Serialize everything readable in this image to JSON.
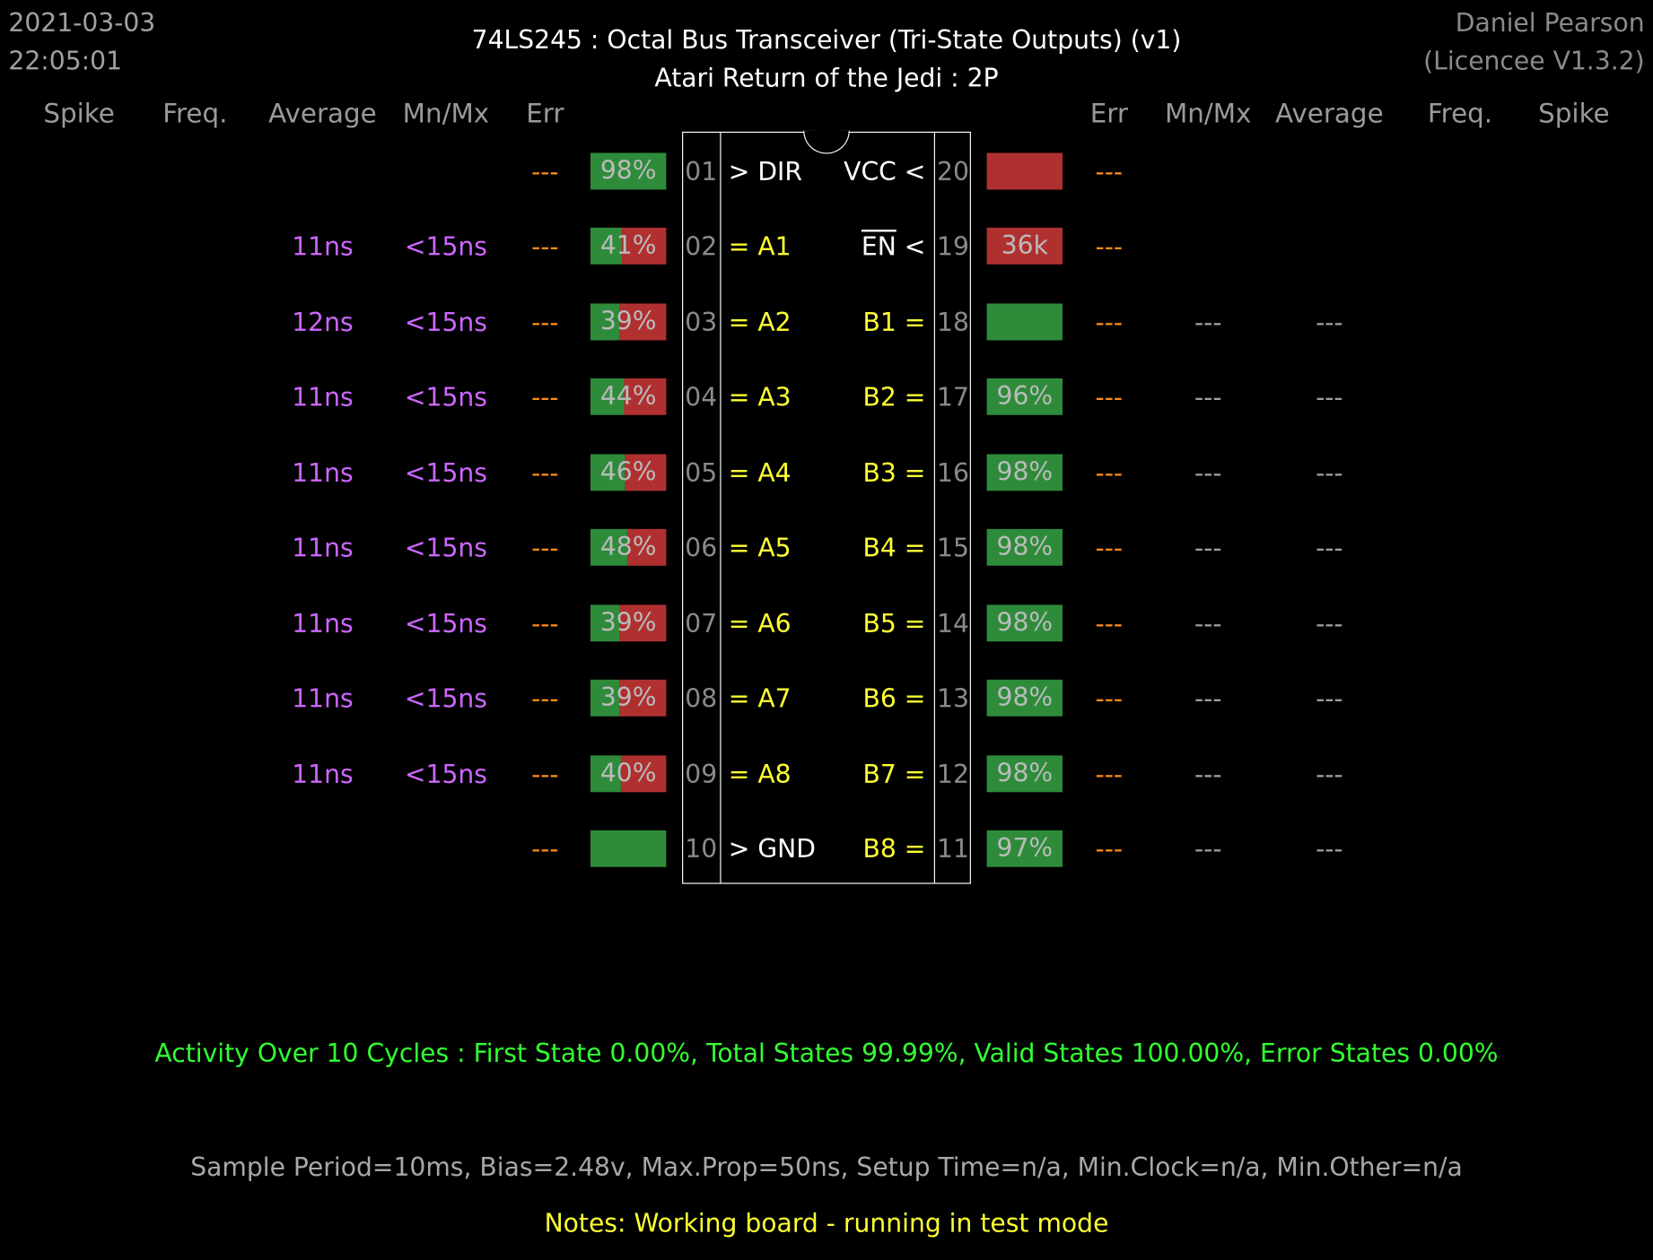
{
  "header": {
    "date": "2021-03-03",
    "time": "22:05:01",
    "title": "74LS245  :  Octal Bus Transceiver (Tri-State Outputs) (v1)",
    "subtitle": "Atari Return of the Jedi : 2P",
    "author": "Daniel Pearson",
    "licence": "(Licencee V1.3.2)"
  },
  "columns": {
    "left": [
      "Spike",
      "Freq.",
      "Average",
      "Mn/Mx",
      "Err"
    ],
    "right": [
      "Err",
      "Mn/Mx",
      "Average",
      "Freq.",
      "Spike"
    ]
  },
  "left_pins": [
    {
      "num": "01",
      "label": "> DIR",
      "average": "",
      "mnmx": "",
      "err": "---",
      "pct": 98,
      "bar_text": "98%",
      "bar_color": "green"
    },
    {
      "num": "02",
      "label": "= A1",
      "average": "11ns",
      "mnmx": "<15ns",
      "err": "---",
      "pct": 41,
      "bar_text": "41%",
      "bar_color": "mixed"
    },
    {
      "num": "03",
      "label": "= A2",
      "average": "12ns",
      "mnmx": "<15ns",
      "err": "---",
      "pct": 39,
      "bar_text": "39%",
      "bar_color": "mixed"
    },
    {
      "num": "04",
      "label": "= A3",
      "average": "11ns",
      "mnmx": "<15ns",
      "err": "---",
      "pct": 44,
      "bar_text": "44%",
      "bar_color": "mixed"
    },
    {
      "num": "05",
      "label": "= A4",
      "average": "11ns",
      "mnmx": "<15ns",
      "err": "---",
      "pct": 46,
      "bar_text": "46%",
      "bar_color": "mixed"
    },
    {
      "num": "06",
      "label": "= A5",
      "average": "11ns",
      "mnmx": "<15ns",
      "err": "---",
      "pct": 48,
      "bar_text": "48%",
      "bar_color": "mixed"
    },
    {
      "num": "07",
      "label": "= A6",
      "average": "11ns",
      "mnmx": "<15ns",
      "err": "---",
      "pct": 39,
      "bar_text": "39%",
      "bar_color": "mixed"
    },
    {
      "num": "08",
      "label": "= A7",
      "average": "11ns",
      "mnmx": "<15ns",
      "err": "---",
      "pct": 39,
      "bar_text": "39%",
      "bar_color": "mixed"
    },
    {
      "num": "09",
      "label": "= A8",
      "average": "11ns",
      "mnmx": "<15ns",
      "err": "---",
      "pct": 40,
      "bar_text": "40%",
      "bar_color": "mixed"
    },
    {
      "num": "10",
      "label": "> GND",
      "average": "",
      "mnmx": "",
      "err": "---",
      "pct": 100,
      "bar_text": "",
      "bar_color": "green"
    }
  ],
  "right_pins": [
    {
      "num": "20",
      "label": "VCC <",
      "err": "---",
      "mnmx": "",
      "average": "",
      "pct": 0,
      "bar_text": "",
      "bar_color": "red"
    },
    {
      "num": "19",
      "label": "EN <",
      "err": "---",
      "mnmx": "",
      "average": "",
      "pct": 0,
      "bar_text": "36k",
      "bar_color": "red"
    },
    {
      "num": "18",
      "label": "B1 =",
      "err": "---",
      "mnmx": "---",
      "average": "---",
      "pct": 100,
      "bar_text": "",
      "bar_color": "green"
    },
    {
      "num": "17",
      "label": "B2 =",
      "err": "---",
      "mnmx": "---",
      "average": "---",
      "pct": 96,
      "bar_text": "96%",
      "bar_color": "green"
    },
    {
      "num": "16",
      "label": "B3 =",
      "err": "---",
      "mnmx": "---",
      "average": "---",
      "pct": 98,
      "bar_text": "98%",
      "bar_color": "green"
    },
    {
      "num": "15",
      "label": "B4 =",
      "err": "---",
      "mnmx": "---",
      "average": "---",
      "pct": 98,
      "bar_text": "98%",
      "bar_color": "green"
    },
    {
      "num": "14",
      "label": "B5 =",
      "err": "---",
      "mnmx": "---",
      "average": "---",
      "pct": 98,
      "bar_text": "98%",
      "bar_color": "green"
    },
    {
      "num": "13",
      "label": "B6 =",
      "err": "---",
      "mnmx": "---",
      "average": "---",
      "pct": 98,
      "bar_text": "98%",
      "bar_color": "green"
    },
    {
      "num": "12",
      "label": "B7 =",
      "err": "---",
      "mnmx": "---",
      "average": "---",
      "pct": 98,
      "bar_text": "98%",
      "bar_color": "green"
    },
    {
      "num": "11",
      "label": "B8 =",
      "err": "---",
      "mnmx": "---",
      "average": "---",
      "pct": 97,
      "bar_text": "97%",
      "bar_color": "green"
    }
  ],
  "footer": {
    "activity": "Activity Over 10 Cycles  :  First State 0.00%,  Total States 99.99%,  Valid States 100.00%,  Error States 0.00%",
    "sample": "Sample Period=10ms,  Bias=2.48v,  Max.Prop=50ns,  Setup Time=n/a,  Min.Clock=n/a,  Min.Other=n/a",
    "notes": "Notes:  Working board - running in test mode"
  },
  "colors": {
    "bar_green": "#2e8b3a",
    "bar_red": "#b03030",
    "timing_purple": "#cc66ff",
    "err_orange": "#ff8c1a",
    "signal_yellow": "#ffff33",
    "activity_green": "#33ff33"
  }
}
